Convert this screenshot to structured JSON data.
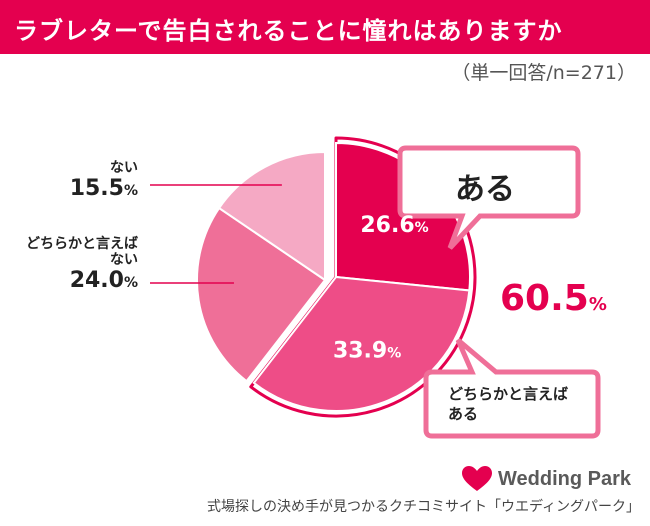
{
  "header": {
    "title": "ラブレターで告白されることに憧れはありますか",
    "subtitle": "（単一回答/n=271）"
  },
  "colors": {
    "brand": "#e4004f",
    "slice_aru": "#e4004f",
    "slice_dochiraka_aru": "#ee4d87",
    "slice_dochiraka_nai": "#ef6f98",
    "slice_nai": "#f5a9c4"
  },
  "chart_data": {
    "type": "pie",
    "n": 271,
    "slices": [
      {
        "label": "ある",
        "value": 26.6,
        "color": "#e4004f",
        "exploded": true
      },
      {
        "label": "どちらかと言えばある",
        "value": 33.9,
        "color": "#ee4d87",
        "exploded": true
      },
      {
        "label": "どちらかと言えばない",
        "value": 24.0,
        "color": "#ef6f98",
        "exploded": false
      },
      {
        "label": "ない",
        "value": 15.5,
        "color": "#f5a9c4",
        "exploded": false
      }
    ],
    "group_total": {
      "value": 60.5,
      "label": "ある"
    }
  },
  "labels": {
    "nai_cat": "ない",
    "nai_pct": "15.5",
    "dochiraka_nai_cat_line1": "どちらかと言えば",
    "dochiraka_nai_cat_line2": "ない",
    "dochiraka_nai_pct": "24.0",
    "aru_pct": "26.6",
    "dochiraka_aru_pct": "33.9",
    "percent_sign": "%",
    "callout_aru": "ある",
    "callout_dochiraka_line1": "どちらかと言えば",
    "callout_dochiraka_line2": "ある",
    "group_total_value": "60.5"
  },
  "footer": {
    "logo_text": "Wedding Park",
    "caption": "式場探しの決め手が見つかるクチコミサイト「ウエディングパーク」"
  }
}
